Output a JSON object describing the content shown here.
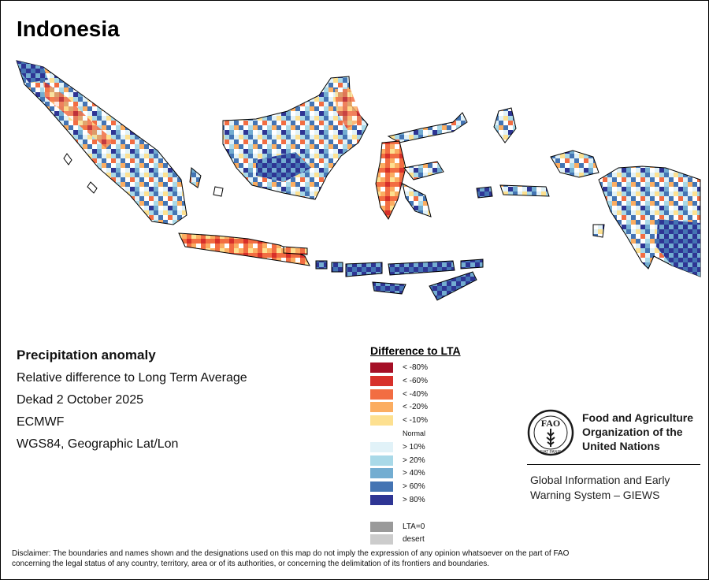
{
  "title": "Indonesia",
  "info": {
    "heading": "Precipitation anomaly",
    "subtitle": "Relative difference to Long Term Average",
    "period": "Dekad 2 October 2025",
    "source": "ECMWF",
    "projection": "WGS84, Geographic Lat/Lon"
  },
  "legend": {
    "title": "Difference to LTA",
    "items": [
      {
        "label": "< -80%",
        "color": "#a50f26"
      },
      {
        "label": "< -60%",
        "color": "#d7302a"
      },
      {
        "label": "< -40%",
        "color": "#f26d42"
      },
      {
        "label": "< -20%",
        "color": "#fbad61"
      },
      {
        "label": "< -10%",
        "color": "#fde090"
      },
      {
        "label": "Normal",
        "color": "#ffffff"
      },
      {
        "label": "> 10%",
        "color": "#e1f2f8"
      },
      {
        "label": "> 20%",
        "color": "#a9d9e8"
      },
      {
        "label": "> 40%",
        "color": "#73add1"
      },
      {
        "label": "> 60%",
        "color": "#4474b3"
      },
      {
        "label": "> 80%",
        "color": "#2e3594"
      },
      {
        "label": "",
        "color": "#ffffff"
      },
      {
        "label": "LTA=0",
        "color": "#9a9a9a"
      },
      {
        "label": "desert",
        "color": "#cccccc"
      }
    ]
  },
  "fao": {
    "logo_letters": "FAO",
    "logo_motto": "FIAT PANIS",
    "name_line1": "Food and Agriculture",
    "name_line2": "Organization of the",
    "name_line3": "United Nations",
    "giews_line1": "Global Information and Early",
    "giews_line2": "Warning System – GIEWS"
  },
  "disclaimer_line1": "Disclaimer: The boundaries and names shown and the designations used on this map do not imply the expression of any opinion whatsoever on the part of FAO",
  "disclaimer_line2": "concerning the legal status of any country, territory, area or of its authorities, or concerning the delimitation of its frontiers and boundaries."
}
